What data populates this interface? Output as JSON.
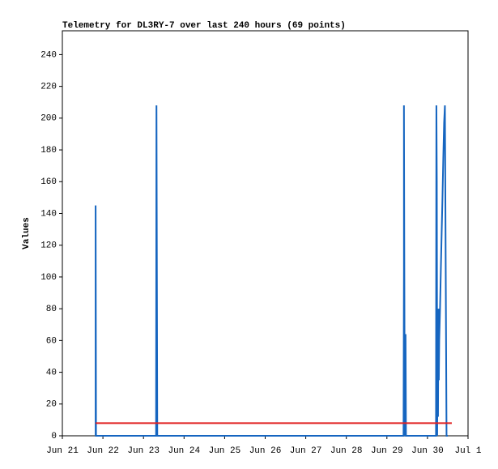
{
  "chart_data": {
    "type": "line",
    "title": "Telemetry for DL3RY-7 over last 240 hours (69 points)",
    "y_label": "Values",
    "xlim": [
      0,
      10
    ],
    "xticks": [
      {
        "value": 0,
        "label": "Jun 21"
      },
      {
        "value": 1,
        "label": "Jun 22"
      },
      {
        "value": 2,
        "label": "Jun 23"
      },
      {
        "value": 3,
        "label": "Jun 24"
      },
      {
        "value": 4,
        "label": "Jun 25"
      },
      {
        "value": 5,
        "label": "Jun 26"
      },
      {
        "value": 6,
        "label": "Jun 27"
      },
      {
        "value": 7,
        "label": "Jun 28"
      },
      {
        "value": 8,
        "label": "Jun 29"
      },
      {
        "value": 9,
        "label": "Jun 30"
      },
      {
        "value": 10,
        "label": "Jul 1"
      }
    ],
    "ylim": [
      0,
      255
    ],
    "yticks": [
      0,
      20,
      40,
      60,
      80,
      100,
      120,
      140,
      160,
      180,
      200,
      220,
      240
    ],
    "grid": false,
    "series": [
      {
        "color": "#1565c0",
        "x": [
          0.82,
          0.82,
          0.83,
          2.31,
          2.32,
          2.33,
          2.34,
          8.41,
          8.42,
          8.42,
          8.44,
          8.46,
          8.47,
          9.21,
          9.22,
          9.23,
          9.24,
          9.25,
          9.26,
          9.27,
          9.28,
          9.29,
          9.31,
          9.33,
          9.35,
          9.37,
          9.39,
          9.41,
          9.43,
          9.45,
          9.47,
          9.5
        ],
        "values": [
          0,
          145,
          0,
          0,
          208,
          104,
          0,
          0,
          104,
          208,
          0,
          64,
          0,
          0,
          208,
          160,
          0,
          80,
          12,
          80,
          35,
          60,
          80,
          105,
          128,
          150,
          175,
          197,
          208,
          104,
          0,
          0
        ]
      },
      {
        "color": "#e02020",
        "x": [
          0.82,
          9.6
        ],
        "values": [
          8,
          8
        ]
      }
    ]
  }
}
